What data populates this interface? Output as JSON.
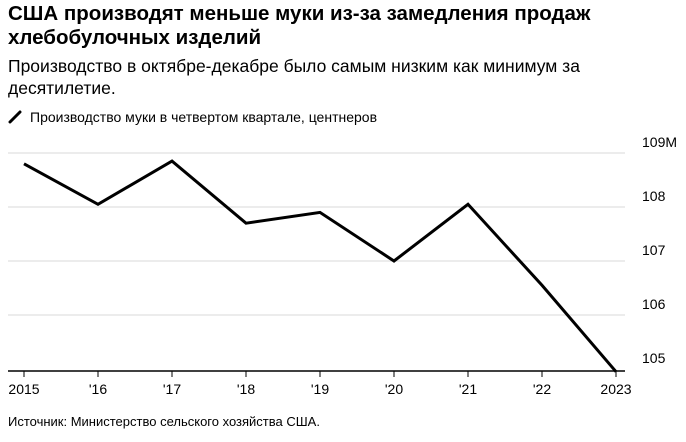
{
  "header": {
    "title": "США производят меньше муки из-за замедления продаж хлебобулочных изделий",
    "subtitle": "Производство в октябре-декабре было самым низким как минимум за десятилетие."
  },
  "legend": {
    "label": "Производство муки в четвертом квартале, центнеров"
  },
  "footer": {
    "source": "Источник: Министерство сельского хозяйства США."
  },
  "colors": {
    "line": "#000000",
    "grid": "#d9d9d9",
    "axis": "#000000"
  },
  "chart_data": {
    "type": "line",
    "x": [
      "2015",
      "'16",
      "'17",
      "'18",
      "'19",
      "'20",
      "'21",
      "'22",
      "2023"
    ],
    "series": [
      {
        "name": "Производство муки в четвертом квартале, центнеров",
        "values": [
          108.8,
          108.05,
          108.85,
          107.7,
          107.9,
          107.0,
          108.05,
          106.55,
          104.95
        ]
      }
    ],
    "y_ticks": [
      105,
      106,
      107,
      108,
      109
    ],
    "y_tick_labels": [
      "105",
      "106",
      "107",
      "108",
      "109M"
    ],
    "ylim": [
      104.9,
      109.3
    ],
    "grid": "horizontal",
    "y_axis_position": "right"
  }
}
